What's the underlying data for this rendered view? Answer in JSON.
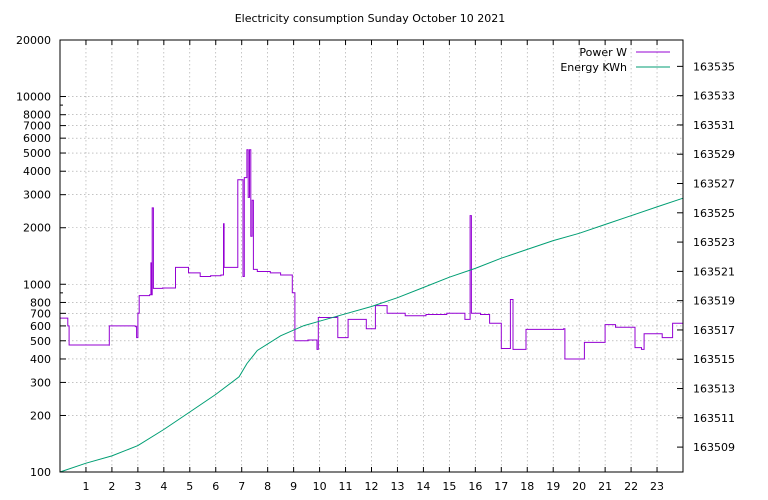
{
  "chart_data": {
    "type": "line",
    "title": "Electricity consumption Sunday October 10 2021",
    "xlabel": "",
    "ylabel": "",
    "y2label": "",
    "grid": true,
    "legend_position": "top-right",
    "xlim": [
      0,
      24
    ],
    "ylim": [
      100,
      20000
    ],
    "y_scale": "log",
    "y2lim": [
      163507.3,
      163536.8
    ],
    "x_ticks": [
      "1",
      "2",
      "3",
      "4",
      "5",
      "6",
      "7",
      "8",
      "9",
      "10",
      "11",
      "12",
      "13",
      "14",
      "15",
      "16",
      "17",
      "18",
      "19",
      "20",
      "21",
      "22",
      "23"
    ],
    "y_ticks": [
      "100",
      "200",
      "300",
      "400",
      "500",
      "600",
      "700",
      "800",
      "1000",
      "2000",
      "3000",
      "4000",
      "5000",
      "6000",
      "7000",
      "8000",
      "10000",
      "20000"
    ],
    "y2_ticks": [
      "163509",
      "163511",
      "163513",
      "163515",
      "163517",
      "163519",
      "163521",
      "163523",
      "163525",
      "163527",
      "163529",
      "163531",
      "163533",
      "163535"
    ],
    "series": [
      {
        "name": "Power W",
        "color": "#9400d3",
        "axis": "y",
        "step": true,
        "points": [
          [
            0,
            660
          ],
          [
            0.3,
            600
          ],
          [
            0.35,
            475
          ],
          [
            1.9,
            470
          ],
          [
            1.9,
            600
          ],
          [
            2.9,
            595
          ],
          [
            2.95,
            520
          ],
          [
            3.0,
            700
          ],
          [
            3.05,
            870
          ],
          [
            3.45,
            880
          ],
          [
            3.5,
            1300
          ],
          [
            3.52,
            880
          ],
          [
            3.55,
            2550
          ],
          [
            3.6,
            950
          ],
          [
            3.95,
            955
          ],
          [
            4.45,
            1230
          ],
          [
            4.95,
            1150
          ],
          [
            5.4,
            1100
          ],
          [
            5.8,
            1110
          ],
          [
            6.2,
            1120
          ],
          [
            6.3,
            2100
          ],
          [
            6.32,
            1230
          ],
          [
            6.8,
            1230
          ],
          [
            6.85,
            3600
          ],
          [
            7.05,
            1100
          ],
          [
            7.1,
            3700
          ],
          [
            7.2,
            5200
          ],
          [
            7.25,
            2900
          ],
          [
            7.3,
            5200
          ],
          [
            7.35,
            1800
          ],
          [
            7.4,
            2800
          ],
          [
            7.45,
            1200
          ],
          [
            7.6,
            1170
          ],
          [
            8.1,
            1150
          ],
          [
            8.5,
            1120
          ],
          [
            8.95,
            900
          ],
          [
            9.05,
            500
          ],
          [
            9.55,
            505
          ],
          [
            9.9,
            450
          ],
          [
            9.95,
            665
          ],
          [
            10.65,
            670
          ],
          [
            10.7,
            520
          ],
          [
            11.1,
            650
          ],
          [
            11.8,
            580
          ],
          [
            12.15,
            770
          ],
          [
            12.6,
            700
          ],
          [
            13.3,
            680
          ],
          [
            14.1,
            690
          ],
          [
            14.9,
            700
          ],
          [
            15.6,
            650
          ],
          [
            15.8,
            2320
          ],
          [
            15.85,
            700
          ],
          [
            16.2,
            690
          ],
          [
            16.55,
            620
          ],
          [
            17.0,
            455
          ],
          [
            17.35,
            830
          ],
          [
            17.45,
            450
          ],
          [
            17.95,
            575
          ],
          [
            19.4,
            580
          ],
          [
            19.45,
            400
          ],
          [
            20.2,
            490
          ],
          [
            20.8,
            490
          ],
          [
            21.0,
            610
          ],
          [
            21.4,
            590
          ],
          [
            22.15,
            460
          ],
          [
            22.4,
            450
          ],
          [
            22.5,
            545
          ],
          [
            23.2,
            520
          ],
          [
            23.6,
            620
          ],
          [
            24,
            620
          ]
        ]
      },
      {
        "name": "Energy KWh",
        "color": "#009e73",
        "axis": "y2",
        "step": false,
        "points": [
          [
            0,
            163507.3
          ],
          [
            1,
            163507.9
          ],
          [
            2,
            163508.4
          ],
          [
            3,
            163509.1
          ],
          [
            4,
            163510.2
          ],
          [
            5,
            163511.4
          ],
          [
            6,
            163512.6
          ],
          [
            6.9,
            163513.8
          ],
          [
            7.2,
            163514.7
          ],
          [
            7.6,
            163515.6
          ],
          [
            8.5,
            163516.6
          ],
          [
            9.4,
            163517.3
          ],
          [
            10,
            163517.6
          ],
          [
            11,
            163518.1
          ],
          [
            12,
            163518.6
          ],
          [
            13,
            163519.2
          ],
          [
            14,
            163519.9
          ],
          [
            15,
            163520.6
          ],
          [
            16,
            163521.2
          ],
          [
            17,
            163521.9
          ],
          [
            18,
            163522.5
          ],
          [
            19,
            163523.1
          ],
          [
            20,
            163523.6
          ],
          [
            21,
            163524.2
          ],
          [
            22,
            163524.8
          ],
          [
            23,
            163525.4
          ],
          [
            24,
            163526
          ]
        ]
      }
    ]
  }
}
